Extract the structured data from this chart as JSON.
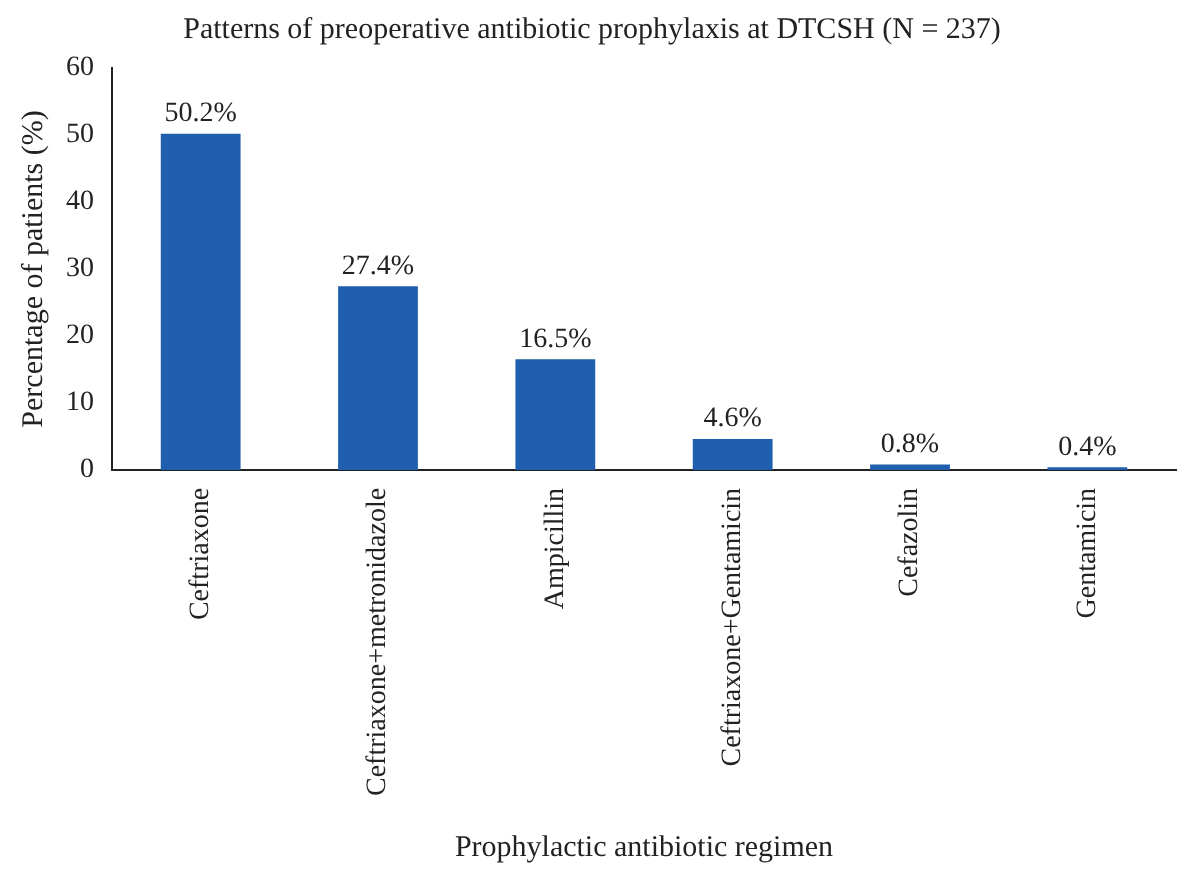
{
  "chart_data": {
    "type": "bar",
    "title": "Patterns of preoperative antibiotic prophylaxis at DTCSH (N = 237)",
    "xlabel": "Prophylactic antibiotic regimen",
    "ylabel": "Percentage of patients (%)",
    "categories": [
      "Ceftriaxone",
      "Ceftriaxone+metronidazole",
      "Ampicillin",
      "Ceftriaxone+Gentamicin",
      "Cefazolin",
      "Gentamicin"
    ],
    "values": [
      50.2,
      27.4,
      16.5,
      4.6,
      0.8,
      0.4
    ],
    "value_labels": [
      "50.2%",
      "27.4%",
      "16.5%",
      "4.6%",
      "0.8%",
      "0.4%"
    ],
    "color": "#1f5fad",
    "ylim": [
      0,
      60
    ],
    "yticks": [
      0,
      10,
      20,
      30,
      40,
      50,
      60
    ],
    "grid": false,
    "legend": false
  }
}
